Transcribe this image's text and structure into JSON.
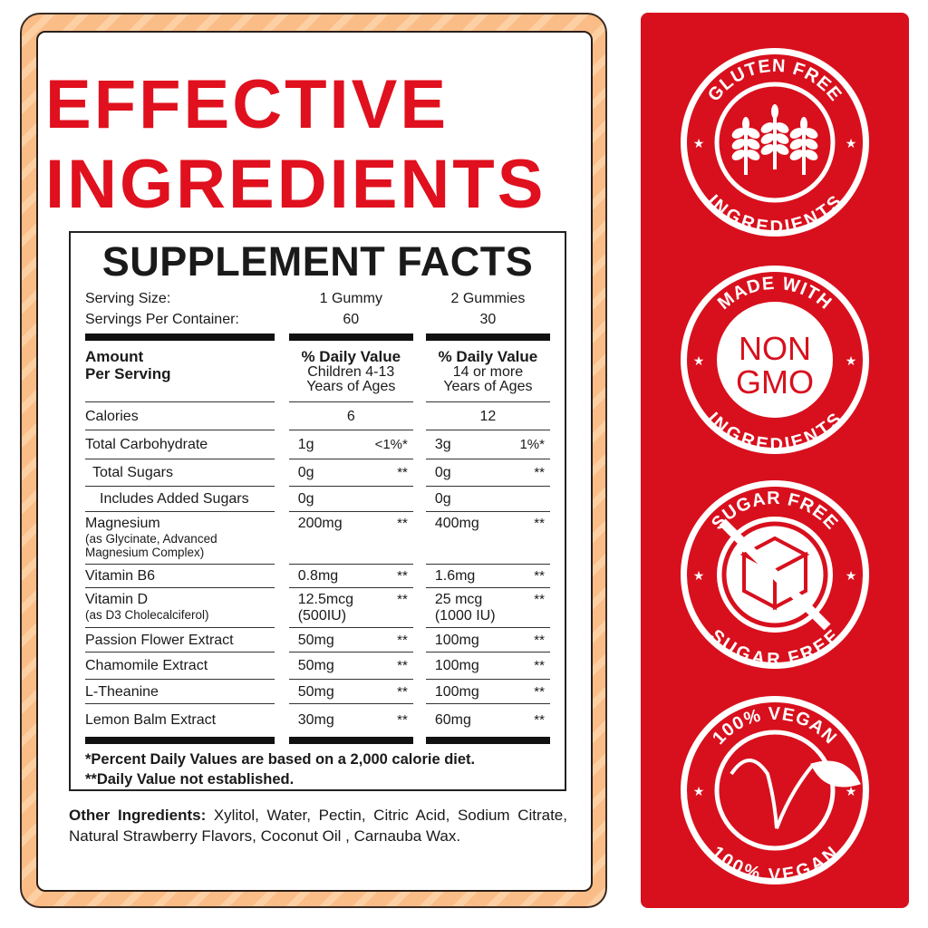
{
  "title": {
    "line1": "EFFECTIVE",
    "line2": "INGREDIENTS"
  },
  "facts": {
    "heading": "SUPPLEMENT FACTS",
    "serving_size": {
      "label": "Serving Size:",
      "col1": "1 Gummy",
      "col2": "2 Gummies"
    },
    "servings_per_container": {
      "label": "Servings Per Container:",
      "col1": "60",
      "col2": "30"
    },
    "header": {
      "label1": "Amount",
      "label2": "Per Serving",
      "col1": {
        "title": "% Daily Value",
        "sub1": "Children 4-13",
        "sub2": "Years of Ages"
      },
      "col2": {
        "title": "% Daily Value",
        "sub1": "14 or more",
        "sub2": "Years of Ages"
      }
    },
    "rows": [
      {
        "name": "Calories",
        "a1": "6",
        "p1": "",
        "a2": "12",
        "p2": ""
      },
      {
        "name": "Total Carbohydrate",
        "a1": "1g",
        "p1": "<1%*",
        "a2": "3g",
        "p2": "1%*"
      },
      {
        "name": "Total Sugars",
        "a1": "0g",
        "p1": "**",
        "a2": "0g",
        "p2": "**"
      },
      {
        "name": "Includes Added Sugars",
        "a1": "0g",
        "p1": "",
        "a2": "0g",
        "p2": ""
      },
      {
        "name": "Magnesium",
        "sub": "(as Glycinate, Advanced",
        "sub2": "Magnesium Complex)",
        "a1": "200mg",
        "p1": "**",
        "a2": "400mg",
        "p2": "**"
      },
      {
        "name": "Vitamin B6",
        "a1": "0.8mg",
        "p1": "**",
        "a2": "1.6mg",
        "p2": "**"
      },
      {
        "name": "Vitamin D",
        "sub": "(as D3 Cholecalciferol)",
        "a1": "12.5mcg",
        "a1b": "(500IU)",
        "p1": "**",
        "a2": "25 mcg",
        "a2b": "(1000 IU)",
        "p2": "**"
      },
      {
        "name": "Passion Flower Extract",
        "a1": "50mg",
        "p1": "**",
        "a2": "100mg",
        "p2": "**"
      },
      {
        "name": "Chamomile Extract",
        "a1": "50mg",
        "p1": "**",
        "a2": "100mg",
        "p2": "**"
      },
      {
        "name": "L-Theanine",
        "a1": "50mg",
        "p1": "**",
        "a2": "100mg",
        "p2": "**"
      },
      {
        "name": "Lemon Balm Extract",
        "a1": "30mg",
        "p1": "**",
        "a2": "60mg",
        "p2": "**"
      }
    ],
    "footnote1": "*Percent Daily Values are based on a 2,000 calorie diet.",
    "footnote2": "**Daily Value not established."
  },
  "other": {
    "label": "Other Ingredients:",
    "text": " Xylitol, Water, Pectin, Citric Acid, Sodium Citrate, Natural Strawberry Flavors, Coconut Oil , Carnauba Wax."
  },
  "badges": [
    {
      "icon": "wheat-icon",
      "top": "GLUTEN FREE",
      "bottom": "INGREDIENTS"
    },
    {
      "icon": "non-gmo-text",
      "top": "MADE WITH",
      "center1": "NON",
      "center2": "GMO",
      "bottom": "INGREDIENTS"
    },
    {
      "icon": "sugar-cube-icon",
      "top": "SUGAR FREE",
      "bottom": "SUGAR FREE"
    },
    {
      "icon": "vegan-leaf-icon",
      "top": "100% VEGAN",
      "bottom": "100% VEGAN"
    }
  ],
  "colors": {
    "red": "#d8101d",
    "title_red": "#e0101e",
    "frame_peach": "#fbbd88"
  }
}
